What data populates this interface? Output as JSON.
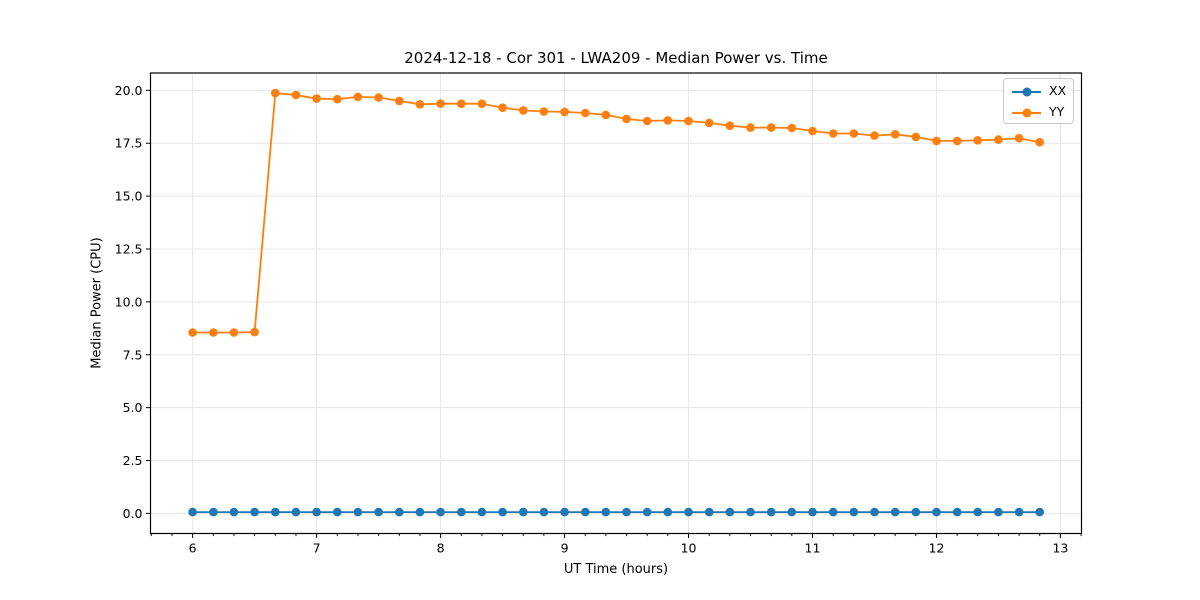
{
  "figure": {
    "background": "#ffffff",
    "spine_color": "#000000",
    "grid_color": "#e5e5e5"
  },
  "legend": {
    "items": [
      "XX",
      "YY"
    ]
  },
  "chart_data": {
    "type": "line",
    "title": "2024-12-18 - Cor 301 - LWA209 - Median Power vs. Time",
    "xlabel": "UT Time (hours)",
    "ylabel": "Median Power (CPU)",
    "xlim": [
      5.66,
      13.17
    ],
    "ylim": [
      -0.95,
      20.82
    ],
    "grid": true,
    "legend_position": "upper right",
    "x_ticks": [
      6,
      7,
      8,
      9,
      10,
      11,
      12,
      13
    ],
    "x_tick_labels": [
      "6",
      "7",
      "8",
      "9",
      "10",
      "11",
      "12",
      "13"
    ],
    "y_ticks": [
      0.0,
      2.5,
      5.0,
      7.5,
      10.0,
      12.5,
      15.0,
      17.5,
      20.0
    ],
    "y_tick_labels": [
      "0.0",
      "2.5",
      "5.0",
      "7.5",
      "10.0",
      "12.5",
      "15.0",
      "17.5",
      "20.0"
    ],
    "minor_tick_step_x": 0.16667,
    "x": [
      6.0,
      6.167,
      6.333,
      6.5,
      6.667,
      6.833,
      7.0,
      7.167,
      7.333,
      7.5,
      7.667,
      7.833,
      8.0,
      8.167,
      8.333,
      8.5,
      8.667,
      8.833,
      9.0,
      9.167,
      9.333,
      9.5,
      9.667,
      9.833,
      10.0,
      10.167,
      10.333,
      10.5,
      10.667,
      10.833,
      11.0,
      11.167,
      11.333,
      11.5,
      11.667,
      11.833,
      12.0,
      12.167,
      12.333,
      12.5,
      12.667,
      12.833
    ],
    "series": [
      {
        "name": "XX",
        "color": "#1f77b4",
        "values": [
          0.06,
          0.06,
          0.06,
          0.06,
          0.06,
          0.06,
          0.06,
          0.06,
          0.06,
          0.06,
          0.06,
          0.06,
          0.06,
          0.06,
          0.06,
          0.06,
          0.06,
          0.06,
          0.06,
          0.06,
          0.06,
          0.06,
          0.06,
          0.06,
          0.06,
          0.06,
          0.06,
          0.06,
          0.06,
          0.06,
          0.06,
          0.06,
          0.06,
          0.06,
          0.06,
          0.06,
          0.06,
          0.06,
          0.06,
          0.06,
          0.06,
          0.06
        ]
      },
      {
        "name": "YY",
        "color": "#ff7f0e",
        "values": [
          8.55,
          8.55,
          8.55,
          8.57,
          19.87,
          19.78,
          19.61,
          19.58,
          19.69,
          19.66,
          19.5,
          19.34,
          19.37,
          19.37,
          19.37,
          19.18,
          19.05,
          19.0,
          18.98,
          18.93,
          18.84,
          18.65,
          18.55,
          18.58,
          18.55,
          18.46,
          18.33,
          18.24,
          18.24,
          18.22,
          18.08,
          17.96,
          17.96,
          17.86,
          17.92,
          17.8,
          17.61,
          17.61,
          17.64,
          17.67,
          17.74,
          17.55
        ]
      }
    ]
  }
}
